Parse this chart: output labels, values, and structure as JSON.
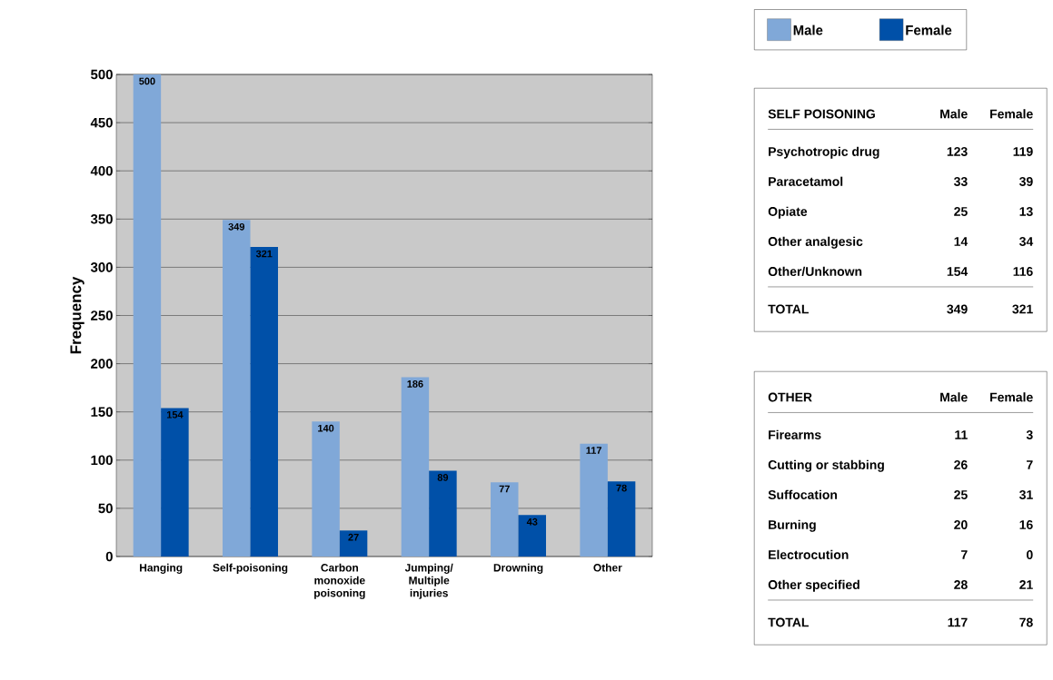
{
  "chart_data": [
    {
      "type": "bar",
      "ylabel": "Frequency",
      "categories": [
        "Hanging",
        "Self-poisoning",
        "Carbon monoxide poisoning",
        "Jumping/ Multiple injuries",
        "Drowning",
        "Other"
      ],
      "series": [
        {
          "name": "Male",
          "color": "#80a8d8",
          "values": [
            500,
            349,
            140,
            186,
            77,
            117
          ]
        },
        {
          "name": "Female",
          "color": "#0050a8",
          "values": [
            154,
            321,
            27,
            89,
            43,
            78
          ]
        }
      ],
      "ylim": [
        0,
        500
      ],
      "yticks": [
        0,
        50,
        100,
        150,
        200,
        250,
        300,
        350,
        400,
        450,
        500
      ],
      "grid": "y",
      "legend": "top right",
      "data_labels": true
    },
    {
      "type": "other",
      "title": "SELF POISONING",
      "categories": [
        "Psychotropic drug",
        "Paracetamol",
        "Opiate",
        "Other analgesic",
        "Other/Unknown",
        "TOTAL"
      ],
      "series": [
        {
          "name": "Male",
          "values": [
            123,
            33,
            25,
            14,
            154,
            349
          ]
        },
        {
          "name": "Female",
          "values": [
            119,
            39,
            13,
            34,
            116,
            321
          ]
        }
      ],
      "data_labels": true
    },
    {
      "type": "other",
      "title": "OTHER",
      "categories": [
        "Firearms",
        "Cutting or stabbing",
        "Suffocation",
        "Burning",
        "Electrocution",
        "Other specified",
        "TOTAL"
      ],
      "series": [
        {
          "name": "Male",
          "values": [
            11,
            26,
            25,
            20,
            7,
            28,
            117
          ]
        },
        {
          "name": "Female",
          "values": [
            3,
            7,
            31,
            16,
            0,
            21,
            78
          ]
        }
      ],
      "data_labels": true
    }
  ]
}
